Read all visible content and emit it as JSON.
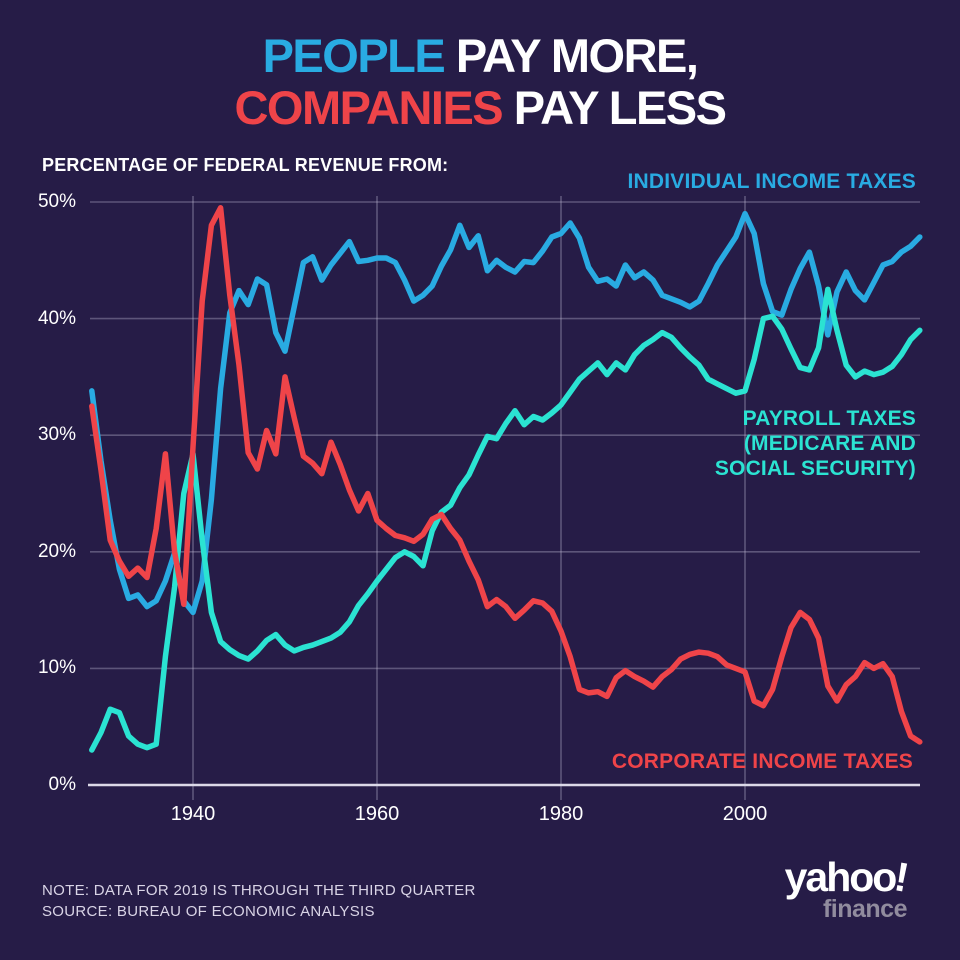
{
  "title": {
    "people": "PEOPLE ",
    "pay_more": "PAY MORE,",
    "companies": "COMPANIES ",
    "pay_less": "PAY LESS"
  },
  "subtitle": "PERCENTAGE OF FEDERAL REVENUE FROM:",
  "legend": {
    "individual": "INDIVIDUAL INCOME TAXES",
    "payroll": {
      "lines": [
        "PAYROLL TAXES",
        "(MEDICARE AND",
        "SOCIAL SECURITY)"
      ]
    },
    "corporate": "CORPORATE INCOME TAXES"
  },
  "footnote": {
    "note": "NOTE: DATA FOR 2019 IS THROUGH THE THIRD QUARTER",
    "source": "SOURCE: BUREAU OF ECONOMIC ANALYSIS"
  },
  "logo": {
    "brand": "yahoo",
    "bang": "!",
    "sub": "finance"
  },
  "colors": {
    "background": "#261c47",
    "individual_blue": "#29abe2",
    "payroll_teal": "#2be3d2",
    "corporate_red": "#ef4449",
    "grid": "rgba(198,193,218,0.35)",
    "axis": "#dcd9e8",
    "text_white": "#ffffff",
    "footnote_text": "#d9d4e6",
    "finance_gray": "#918c9e"
  },
  "chart_data": {
    "type": "line",
    "title": "PEOPLE PAY MORE, COMPANIES PAY LESS",
    "xlabel": "",
    "ylabel": "PERCENTAGE OF FEDERAL REVENUE FROM:",
    "x": {
      "start": 1929,
      "end": 2019,
      "step": 1
    },
    "ylim": [
      0,
      50
    ],
    "grid": true,
    "ylabel_ticks": [
      50,
      40,
      30,
      20,
      10,
      0
    ],
    "y_tick_labels": [
      "50%",
      "40%",
      "30%",
      "20%",
      "10%",
      "0%"
    ],
    "xlabel_ticks": [
      1940,
      1960,
      1980,
      2000
    ],
    "x_tick_labels": [
      "1940",
      "1960",
      "1980",
      "2000"
    ],
    "series": [
      {
        "name": "INDIVIDUAL INCOME TAXES",
        "color": "#29abe2",
        "values": [
          33.8,
          27.8,
          22.7,
          18.5,
          16.0,
          16.3,
          15.3,
          15.8,
          17.5,
          19.9,
          15.8,
          14.8,
          17.5,
          24.5,
          34.0,
          40.5,
          42.4,
          41.2,
          43.4,
          42.9,
          38.8,
          37.2,
          41.0,
          44.8,
          45.3,
          43.3,
          44.6,
          45.6,
          46.6,
          44.9,
          45.0,
          45.2,
          45.2,
          44.8,
          43.3,
          41.5,
          42.0,
          42.8,
          44.5,
          45.9,
          48.0,
          46.1,
          47.1,
          44.1,
          45.0,
          44.4,
          44.0,
          44.9,
          44.8,
          45.8,
          47.0,
          47.3,
          48.2,
          46.9,
          44.4,
          43.2,
          43.4,
          42.8,
          44.6,
          43.5,
          44.0,
          43.3,
          42.0,
          41.7,
          41.4,
          41.0,
          41.5,
          43.0,
          44.6,
          45.8,
          47.0,
          49.0,
          47.3,
          43.0,
          40.6,
          40.3,
          42.5,
          44.3,
          45.7,
          42.8,
          38.6,
          42.3,
          44.0,
          42.4,
          41.6,
          43.1,
          44.6,
          44.9,
          45.7,
          46.2,
          47.0
        ]
      },
      {
        "name": "PAYROLL TAXES (MEDICARE AND SOCIAL SECURITY)",
        "color": "#2be3d2",
        "values": [
          3.0,
          4.5,
          6.5,
          6.2,
          4.2,
          3.5,
          3.2,
          3.5,
          11.0,
          17.0,
          25.0,
          28.4,
          21.0,
          14.8,
          12.3,
          11.6,
          11.1,
          10.8,
          11.5,
          12.4,
          12.9,
          12.0,
          11.5,
          11.8,
          12.0,
          12.3,
          12.6,
          13.1,
          14.0,
          15.4,
          16.4,
          17.5,
          18.5,
          19.5,
          20.0,
          19.6,
          18.8,
          21.8,
          23.4,
          24.0,
          25.5,
          26.6,
          28.3,
          29.9,
          29.7,
          31.0,
          32.1,
          30.9,
          31.6,
          31.3,
          31.9,
          32.6,
          33.7,
          34.8,
          35.5,
          36.2,
          35.2,
          36.2,
          35.6,
          36.9,
          37.7,
          38.2,
          38.8,
          38.4,
          37.5,
          36.7,
          36.0,
          34.8,
          34.4,
          34.0,
          33.6,
          33.8,
          36.5,
          40.0,
          40.2,
          39.1,
          37.4,
          35.8,
          35.6,
          37.5,
          42.5,
          39.0,
          36.0,
          35.0,
          35.5,
          35.2,
          35.4,
          35.9,
          36.9,
          38.2,
          39.0
        ]
      },
      {
        "name": "CORPORATE INCOME TAXES",
        "color": "#ef4449",
        "values": [
          32.5,
          27.0,
          21.0,
          19.2,
          17.9,
          18.6,
          17.8,
          22.0,
          28.4,
          20.0,
          15.5,
          29.0,
          41.5,
          48.0,
          49.5,
          42.0,
          36.0,
          28.5,
          27.1,
          30.4,
          28.4,
          35.0,
          31.5,
          28.2,
          27.6,
          26.7,
          29.4,
          27.5,
          25.3,
          23.5,
          25.0,
          22.7,
          22.0,
          21.4,
          21.2,
          20.9,
          21.5,
          22.8,
          23.2,
          22.0,
          21.0,
          19.2,
          17.6,
          15.3,
          15.9,
          15.3,
          14.3,
          15.0,
          15.8,
          15.6,
          14.9,
          13.2,
          11.0,
          8.2,
          7.9,
          8.0,
          7.6,
          9.2,
          9.8,
          9.3,
          8.9,
          8.4,
          9.3,
          9.9,
          10.8,
          11.2,
          11.4,
          11.3,
          11.0,
          10.3,
          10.0,
          9.7,
          7.2,
          6.8,
          8.2,
          11.0,
          13.5,
          14.8,
          14.2,
          12.6,
          8.5,
          7.2,
          8.6,
          9.3,
          10.5,
          10.0,
          10.4,
          9.3,
          6.3,
          4.2,
          3.7
        ]
      }
    ],
    "legend_position": "inline-right"
  }
}
